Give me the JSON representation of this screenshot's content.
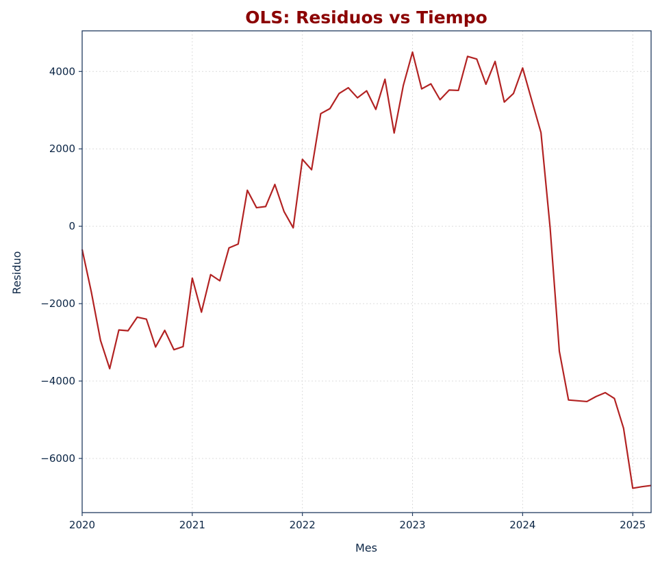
{
  "chart_data": {
    "type": "line",
    "title": "OLS: Residuos vs Tiempo",
    "xlabel": "Mes",
    "ylabel": "Residuo",
    "x_ticks": [
      "2020",
      "2021",
      "2022",
      "2023",
      "2024",
      "2025"
    ],
    "y_ticks": [
      {
        "value": -6000,
        "label": "−6000"
      },
      {
        "value": -4000,
        "label": "−4000"
      },
      {
        "value": -2000,
        "label": "−2000"
      },
      {
        "value": 0,
        "label": "0"
      },
      {
        "value": 2000,
        "label": "2000"
      },
      {
        "value": 4000,
        "label": "4000"
      }
    ],
    "xlim": [
      "2020-01",
      "2025-03"
    ],
    "ylim": [
      -7400,
      5050
    ],
    "grid": true,
    "line_color": "#b22222",
    "series": [
      {
        "x": [
          "2020-01",
          "2020-02",
          "2020-03",
          "2020-04",
          "2020-05",
          "2020-06",
          "2020-07",
          "2020-08",
          "2020-09",
          "2020-10",
          "2020-11",
          "2020-12",
          "2021-01",
          "2021-02",
          "2021-03",
          "2021-04",
          "2021-05",
          "2021-06",
          "2021-07",
          "2021-08",
          "2021-09",
          "2021-10",
          "2021-11",
          "2021-12",
          "2022-01",
          "2022-02",
          "2022-03",
          "2022-04",
          "2022-05",
          "2022-06",
          "2022-07",
          "2022-08",
          "2022-09",
          "2022-10",
          "2022-11",
          "2022-12",
          "2023-01",
          "2023-02",
          "2023-03",
          "2023-04",
          "2023-05",
          "2023-06",
          "2023-07",
          "2023-08",
          "2023-09",
          "2023-10",
          "2023-11",
          "2023-12",
          "2024-01",
          "2024-02",
          "2024-03",
          "2024-04",
          "2024-05",
          "2024-06",
          "2024-07",
          "2024-08",
          "2024-09",
          "2024-10",
          "2024-11",
          "2024-12",
          "2025-01",
          "2025-02",
          "2025-03"
        ],
        "values": [
          -600,
          -1700,
          -2950,
          -3680,
          -2680,
          -2700,
          -2350,
          -2400,
          -3120,
          -2690,
          -3190,
          -3110,
          -1340,
          -2220,
          -1250,
          -1410,
          -560,
          -460,
          930,
          480,
          510,
          1080,
          380,
          -40,
          1730,
          1460,
          2910,
          3040,
          3430,
          3580,
          3320,
          3500,
          3020,
          3800,
          2410,
          3640,
          4500,
          3550,
          3680,
          3270,
          3520,
          3510,
          4390,
          4320,
          3670,
          4260,
          3210,
          3430,
          4090,
          3250,
          2420,
          -50,
          -3230,
          -4490,
          -4510,
          -4530,
          -4400,
          -4300,
          -4450,
          -5220,
          -6770,
          -6730,
          -6700
        ]
      }
    ]
  }
}
